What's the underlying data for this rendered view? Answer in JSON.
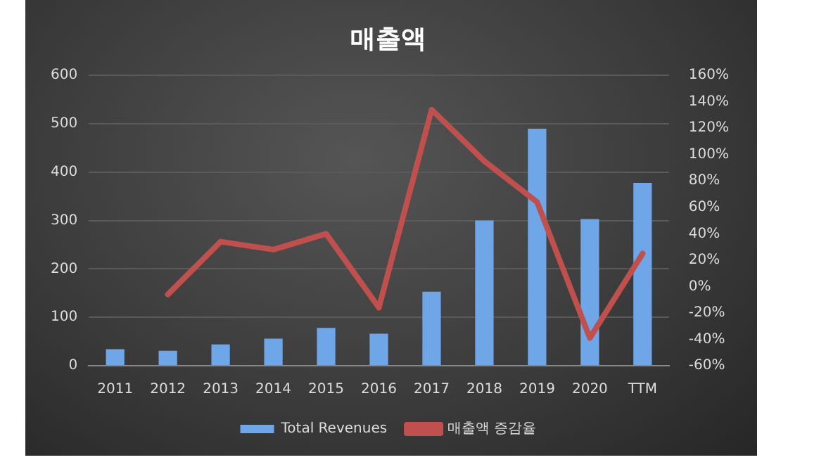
{
  "chart_data": {
    "type": "bar",
    "title": "매출액",
    "categories": [
      "2011",
      "2012",
      "2013",
      "2014",
      "2015",
      "2016",
      "2017",
      "2018",
      "2019",
      "2020",
      "TTM"
    ],
    "series": [
      {
        "name": "Total Revenues",
        "color": "#6fa6e8",
        "values": [
          34,
          31,
          44,
          56,
          78,
          66,
          153,
          300,
          490,
          303,
          378
        ]
      },
      {
        "name": "매출액 증감율",
        "type": "line",
        "axis": "y2",
        "color": "#c0504d",
        "values": [
          null,
          -6,
          34,
          28,
          40,
          -16,
          134,
          95,
          64,
          -39,
          25
        ]
      }
    ],
    "ylim": [
      0,
      600
    ],
    "yticks": [
      0,
      100,
      200,
      300,
      400,
      500,
      600
    ],
    "y2lim": [
      -60,
      160
    ],
    "y2ticks": [
      {
        "value": -60,
        "label": "-60%"
      },
      {
        "value": -40,
        "label": "-40%"
      },
      {
        "value": -20,
        "label": "-20%"
      },
      {
        "value": 0,
        "label": "0%"
      },
      {
        "value": 20,
        "label": "20%"
      },
      {
        "value": 40,
        "label": "40%"
      },
      {
        "value": 60,
        "label": "60%"
      },
      {
        "value": 80,
        "label": "80%"
      },
      {
        "value": 100,
        "label": "100%"
      },
      {
        "value": 120,
        "label": "120%"
      },
      {
        "value": 140,
        "label": "140%"
      },
      {
        "value": 160,
        "label": "160%"
      }
    ],
    "grid": "y",
    "legend": "bottom",
    "marker": "none",
    "line_style": "solid"
  }
}
